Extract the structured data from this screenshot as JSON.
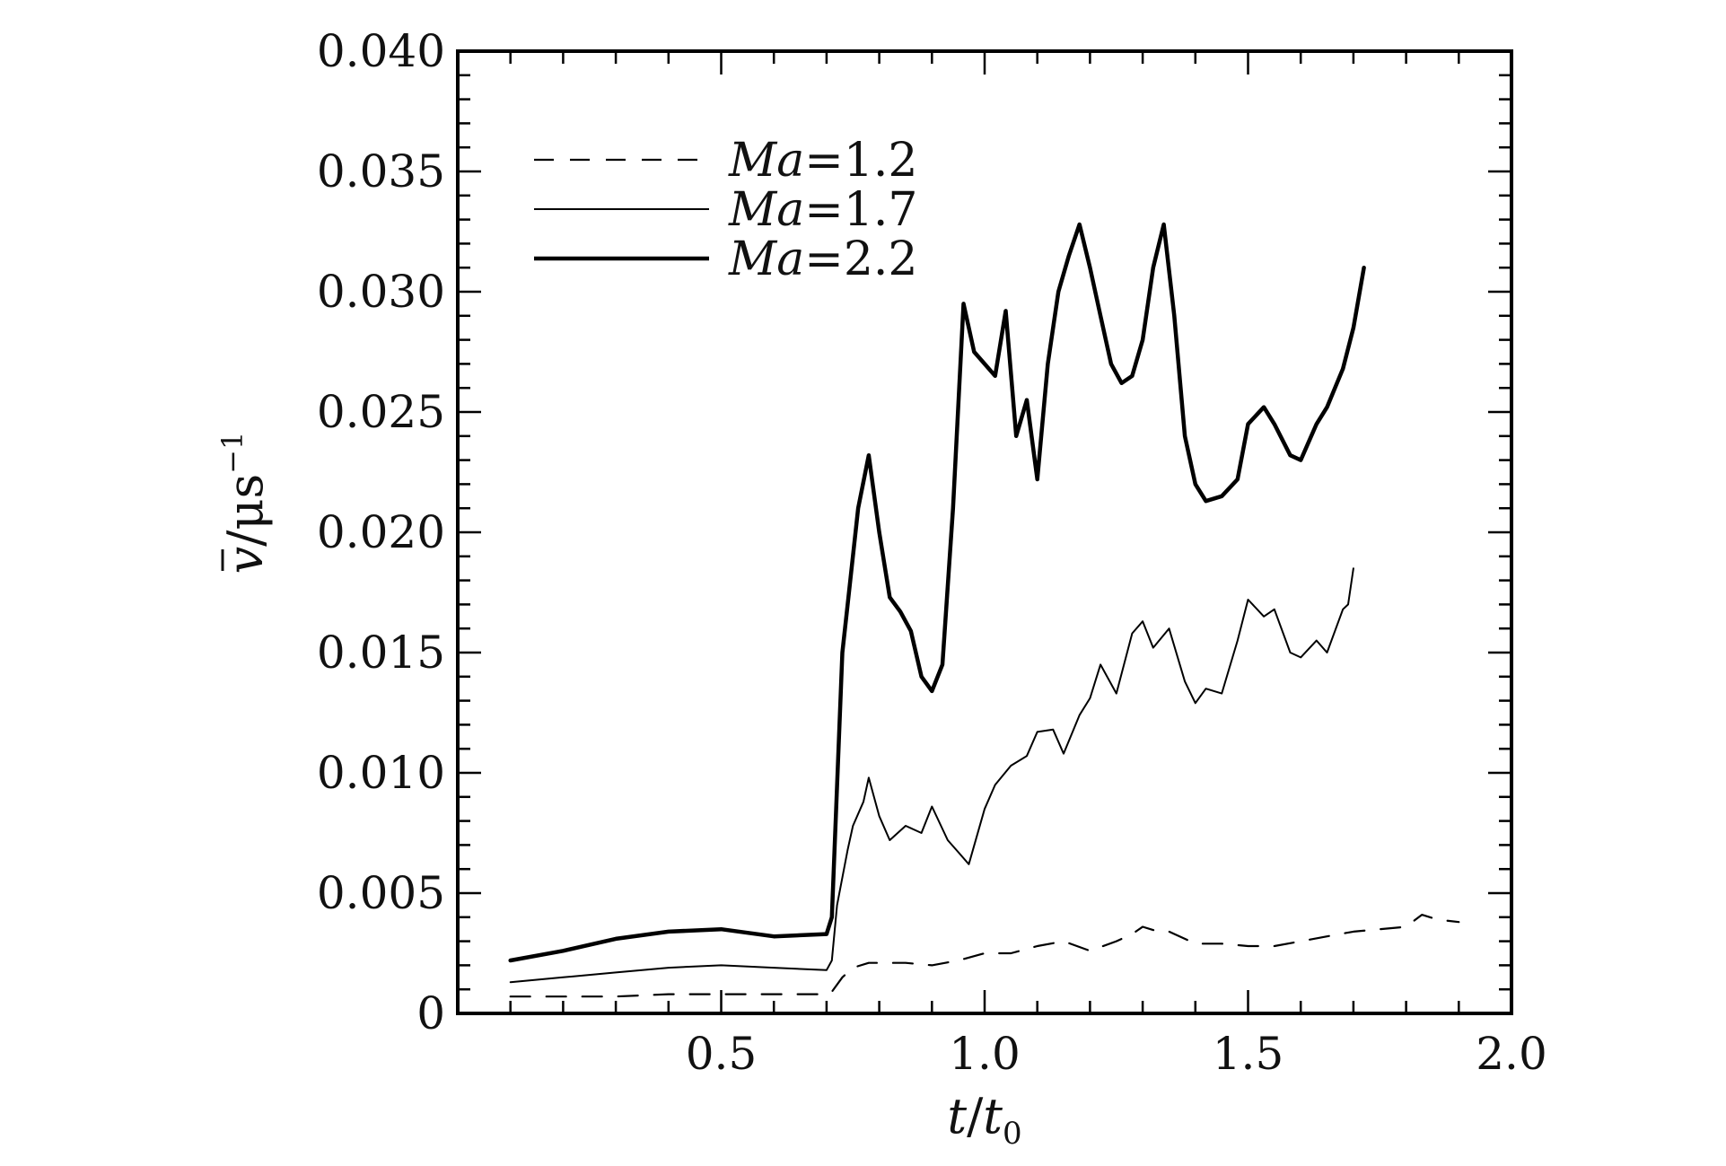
{
  "chart_data": {
    "type": "line",
    "xlabel": {
      "italic": "t",
      "slash": "/",
      "italic2": "t",
      "sub": "0"
    },
    "ylabel": {
      "symbol": "v",
      "unit": "/μs",
      "exp": "−1"
    },
    "xlim": [
      0,
      2.0
    ],
    "ylim": [
      0,
      0.04
    ],
    "xticks": [
      "0.5",
      "1.0",
      "1.5",
      "2.0"
    ],
    "xtick_values": [
      0.5,
      1.0,
      1.5,
      2.0
    ],
    "yticks": [
      "0",
      "0.005",
      "0.010",
      "0.015",
      "0.020",
      "0.025",
      "0.030",
      "0.035",
      "0.040"
    ],
    "ytick_values": [
      0,
      0.005,
      0.01,
      0.015,
      0.02,
      0.025,
      0.03,
      0.035,
      0.04
    ],
    "grid": false,
    "legend_placement": "top-left",
    "series": [
      {
        "name": "Ma=1.2",
        "legend_italic": "Ma",
        "legend_value": "=1.2",
        "style": "dashed",
        "color": "#000000",
        "x": [
          0.1,
          0.2,
          0.3,
          0.4,
          0.5,
          0.6,
          0.7,
          0.71,
          0.73,
          0.75,
          0.78,
          0.8,
          0.85,
          0.9,
          0.95,
          1.0,
          1.05,
          1.1,
          1.15,
          1.2,
          1.25,
          1.28,
          1.3,
          1.33,
          1.35,
          1.4,
          1.45,
          1.5,
          1.55,
          1.6,
          1.65,
          1.7,
          1.75,
          1.8,
          1.83,
          1.86,
          1.9
        ],
        "y": [
          0.0007,
          0.0007,
          0.0007,
          0.0008,
          0.0008,
          0.0008,
          0.0008,
          0.0009,
          0.0015,
          0.0019,
          0.0021,
          0.0021,
          0.0021,
          0.002,
          0.0022,
          0.0025,
          0.0025,
          0.0028,
          0.003,
          0.0026,
          0.003,
          0.0033,
          0.0036,
          0.0034,
          0.0034,
          0.0029,
          0.0029,
          0.0028,
          0.0028,
          0.003,
          0.0032,
          0.0034,
          0.0035,
          0.0036,
          0.0041,
          0.0039,
          0.0038
        ]
      },
      {
        "name": "Ma=1.7",
        "legend_italic": "Ma",
        "legend_value": "=1.7",
        "style": "solid-thin",
        "color": "#000000",
        "x": [
          0.1,
          0.2,
          0.3,
          0.4,
          0.5,
          0.6,
          0.7,
          0.71,
          0.72,
          0.74,
          0.75,
          0.77,
          0.78,
          0.8,
          0.82,
          0.85,
          0.88,
          0.9,
          0.93,
          0.95,
          0.97,
          1.0,
          1.02,
          1.05,
          1.08,
          1.1,
          1.13,
          1.15,
          1.18,
          1.2,
          1.22,
          1.25,
          1.28,
          1.3,
          1.32,
          1.35,
          1.38,
          1.4,
          1.42,
          1.45,
          1.48,
          1.5,
          1.53,
          1.55,
          1.58,
          1.6,
          1.63,
          1.65,
          1.68,
          1.69,
          1.7
        ],
        "y": [
          0.0013,
          0.0015,
          0.0017,
          0.0019,
          0.002,
          0.0019,
          0.0018,
          0.0022,
          0.0045,
          0.0068,
          0.0078,
          0.0088,
          0.0098,
          0.0082,
          0.0072,
          0.0078,
          0.0075,
          0.0086,
          0.0072,
          0.0067,
          0.0062,
          0.0085,
          0.0095,
          0.0103,
          0.0107,
          0.0117,
          0.0118,
          0.0108,
          0.0124,
          0.0131,
          0.0145,
          0.0133,
          0.0158,
          0.0163,
          0.0152,
          0.016,
          0.0138,
          0.0129,
          0.0135,
          0.0133,
          0.0155,
          0.0172,
          0.0165,
          0.0168,
          0.015,
          0.0148,
          0.0155,
          0.015,
          0.0168,
          0.017,
          0.0185
        ]
      },
      {
        "name": "Ma=2.2",
        "legend_italic": "Ma",
        "legend_value": "=2.2",
        "style": "solid-thick",
        "color": "#000000",
        "x": [
          0.1,
          0.2,
          0.3,
          0.4,
          0.5,
          0.6,
          0.7,
          0.71,
          0.73,
          0.74,
          0.76,
          0.78,
          0.8,
          0.82,
          0.84,
          0.86,
          0.88,
          0.9,
          0.92,
          0.94,
          0.96,
          0.98,
          1.0,
          1.02,
          1.04,
          1.06,
          1.08,
          1.1,
          1.12,
          1.14,
          1.16,
          1.18,
          1.2,
          1.22,
          1.24,
          1.26,
          1.28,
          1.3,
          1.32,
          1.34,
          1.36,
          1.38,
          1.4,
          1.42,
          1.45,
          1.48,
          1.5,
          1.53,
          1.55,
          1.58,
          1.6,
          1.63,
          1.65,
          1.68,
          1.7,
          1.72
        ],
        "y": [
          0.0022,
          0.0026,
          0.0031,
          0.0034,
          0.0035,
          0.0032,
          0.0033,
          0.004,
          0.015,
          0.017,
          0.021,
          0.0232,
          0.02,
          0.0173,
          0.0167,
          0.0159,
          0.014,
          0.0134,
          0.0145,
          0.021,
          0.0295,
          0.0275,
          0.027,
          0.0265,
          0.0292,
          0.024,
          0.0255,
          0.0222,
          0.027,
          0.03,
          0.0315,
          0.0328,
          0.031,
          0.029,
          0.027,
          0.0262,
          0.0265,
          0.028,
          0.031,
          0.0328,
          0.029,
          0.024,
          0.022,
          0.0213,
          0.0215,
          0.0222,
          0.0245,
          0.0252,
          0.0245,
          0.0232,
          0.023,
          0.0245,
          0.0252,
          0.0268,
          0.0285,
          0.031
        ]
      }
    ]
  }
}
